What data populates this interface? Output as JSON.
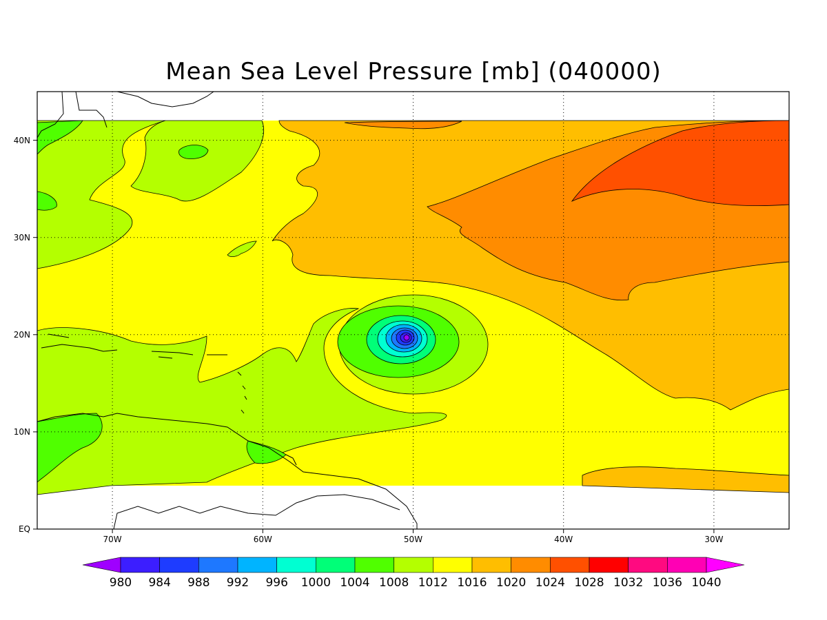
{
  "title": "Mean Sea Level Pressure [mb] (040000)",
  "map": {
    "lon_range": [
      -75,
      -25
    ],
    "lat_range": [
      0,
      45
    ],
    "data_lat_range": [
      5,
      42
    ],
    "grid": true,
    "x_ticks": [
      {
        "lon": -70,
        "label": "70W"
      },
      {
        "lon": -60,
        "label": "60W"
      },
      {
        "lon": -50,
        "label": "50W"
      },
      {
        "lon": -40,
        "label": "40W"
      },
      {
        "lon": -30,
        "label": "30W"
      }
    ],
    "y_ticks": [
      {
        "lat": 0,
        "label": "EQ"
      },
      {
        "lat": 10,
        "label": "10N"
      },
      {
        "lat": 20,
        "label": "20N"
      },
      {
        "lat": 30,
        "label": "30N"
      },
      {
        "lat": 40,
        "label": "40N"
      }
    ],
    "low_center": {
      "lon": -50.5,
      "lat": 19.5
    }
  },
  "colorbar": {
    "labels": [
      "980",
      "984",
      "988",
      "992",
      "996",
      "1000",
      "1004",
      "1008",
      "1012",
      "1016",
      "1020",
      "1024",
      "1028",
      "1032",
      "1036",
      "1040"
    ],
    "colors": [
      "#9f00ff",
      "#3c1eff",
      "#1e3cff",
      "#1e78ff",
      "#00b4ff",
      "#00ffd2",
      "#00ff78",
      "#50ff00",
      "#b4ff00",
      "#ffff00",
      "#ffbe00",
      "#ff8c00",
      "#ff5000",
      "#ff0000",
      "#ff0a80",
      "#ff00b4",
      "#ff00ff"
    ]
  }
}
